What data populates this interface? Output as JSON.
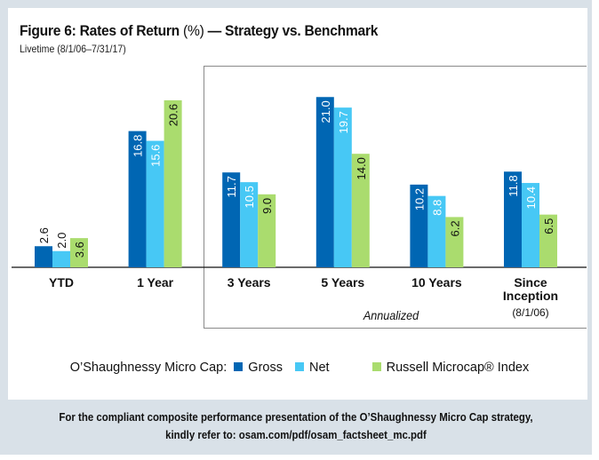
{
  "header": {
    "title_main": "Figure 6: Rates of Return",
    "title_pct": "(%)",
    "title_rest": "— Strategy vs. Benchmark",
    "subtitle": "Livetime (8/1/06–7/31/17)"
  },
  "annualized_label": "Annualized",
  "legend": {
    "prefix": "O’Shaughnessy Micro Cap:",
    "items": [
      {
        "label": "Gross",
        "color": "#0066b3"
      },
      {
        "label": "Net",
        "color": "#47c8f5"
      },
      {
        "label": "Russell Microcap® Index",
        "color": "#aadc6e"
      }
    ]
  },
  "footer": {
    "line1": "For the compliant composite performance presentation of the O’Shaughnessy Micro Cap strategy,",
    "line2": "kindly refer to: osam.com/pdf/osam_factsheet_mc.pdf"
  },
  "chart_data": {
    "type": "bar",
    "title": "Figure 6: Rates of Return (%) — Strategy vs. Benchmark",
    "subtitle": "Livetime (8/1/06–7/31/17)",
    "xlabel": "",
    "ylabel": "",
    "ylim": [
      0,
      21
    ],
    "grid": false,
    "legend_position": "bottom",
    "categories": [
      "YTD",
      "1 Year",
      "3 Years",
      "5 Years",
      "10 Years",
      "Since Inception"
    ],
    "category_sublabels": [
      "",
      "",
      "",
      "",
      "",
      "(8/1/06)"
    ],
    "annotation": "Annualized",
    "series": [
      {
        "name": "Gross",
        "color": "#0066b3",
        "values": [
          2.6,
          16.8,
          11.7,
          21.0,
          10.2,
          11.8
        ]
      },
      {
        "name": "Net",
        "color": "#47c8f5",
        "values": [
          2.0,
          15.6,
          10.5,
          19.7,
          8.8,
          10.4
        ]
      },
      {
        "name": "Russell Microcap® Index",
        "color": "#aadc6e",
        "values": [
          3.6,
          20.6,
          9.0,
          14.0,
          6.2,
          6.5
        ]
      }
    ]
  }
}
